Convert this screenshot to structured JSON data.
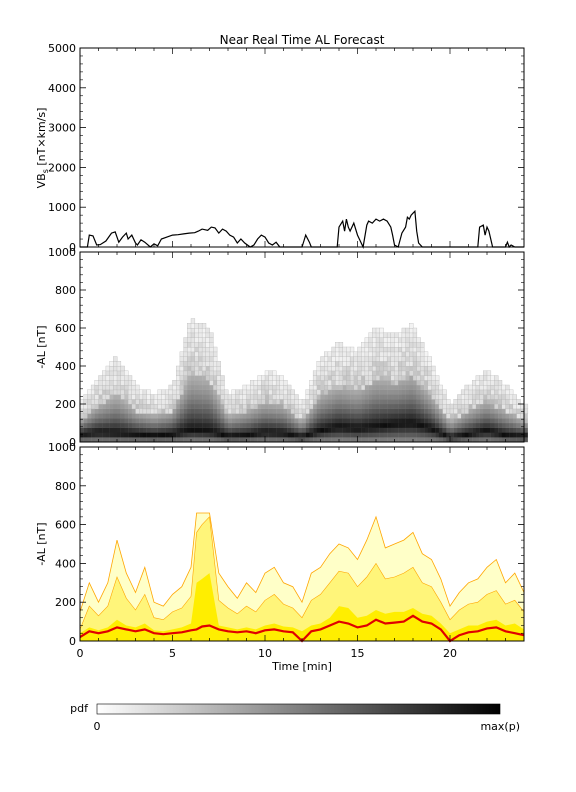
{
  "figure": {
    "title": "Near Real Time AL Forecast",
    "x_ticks": [
      "0",
      "5",
      "10",
      "15",
      "20"
    ],
    "x_label": "Time [min]"
  },
  "colors": {
    "vbs_line": "#000000",
    "al_line": "#e00000",
    "band_outer": "#ffffc8",
    "band_mid": "#fff57a",
    "band_inner": "#ffee00",
    "band_edge": "#ffa500"
  },
  "colorbar": {
    "label": "pdf",
    "min_label": "0",
    "max_label": "max(p)"
  },
  "chart_data": [
    {
      "type": "line",
      "name": "vbs-panel",
      "ylabel": "VB_s [nT×km/s]",
      "ylabel_main": "VB",
      "ylabel_sub": "s",
      "ylabel_rest": " [nT×km/s]",
      "xlim": [
        0,
        24
      ],
      "ylim": [
        0,
        5000
      ],
      "y_ticks": [
        "0",
        "1000",
        "2000",
        "3000",
        "4000",
        "5000"
      ],
      "x": [
        0,
        0.4,
        0.5,
        0.7,
        0.9,
        1.1,
        1.4,
        1.7,
        1.9,
        2.1,
        2.3,
        2.5,
        2.6,
        2.8,
        3.0,
        3.1,
        3.3,
        3.5,
        3.8,
        4.0,
        4.2,
        4.4,
        4.7,
        5.0,
        5.3,
        5.6,
        5.9,
        6.2,
        6.4,
        6.6,
        6.9,
        7.1,
        7.3,
        7.5,
        7.7,
        7.9,
        8.1,
        8.3,
        8.5,
        8.7,
        8.9,
        9.2,
        9.4,
        9.6,
        9.8,
        10.0,
        10.2,
        10.4,
        10.6,
        10.8,
        11.0,
        11.5,
        12.0,
        12.1,
        12.2,
        12.4,
        12.5,
        13.0,
        13.5,
        13.9,
        14.0,
        14.2,
        14.3,
        14.4,
        14.5,
        14.6,
        14.8,
        15.0,
        15.2,
        15.3,
        15.5,
        15.6,
        15.8,
        16.0,
        16.2,
        16.4,
        16.6,
        16.8,
        16.9,
        17.0,
        17.2,
        17.4,
        17.6,
        17.7,
        17.8,
        17.9,
        18.0,
        18.1,
        18.2,
        18.3,
        18.5,
        19.0,
        19.5,
        20.0,
        20.5,
        21.0,
        21.5,
        21.6,
        21.8,
        21.9,
        22.0,
        22.1,
        22.3,
        22.5,
        23.0,
        23.1,
        23.2,
        23.3,
        23.5,
        24.0
      ],
      "y": [
        0,
        0,
        300,
        280,
        50,
        60,
        150,
        350,
        380,
        120,
        250,
        350,
        200,
        300,
        100,
        50,
        180,
        120,
        0,
        80,
        30,
        200,
        250,
        300,
        310,
        330,
        350,
        360,
        400,
        450,
        420,
        500,
        480,
        350,
        450,
        400,
        300,
        250,
        100,
        200,
        100,
        0,
        50,
        200,
        300,
        250,
        100,
        50,
        120,
        0,
        0,
        0,
        0,
        150,
        300,
        120,
        0,
        0,
        0,
        0,
        500,
        650,
        400,
        700,
        500,
        400,
        600,
        300,
        100,
        0,
        550,
        650,
        600,
        700,
        650,
        700,
        650,
        500,
        300,
        50,
        0,
        350,
        500,
        750,
        700,
        800,
        850,
        900,
        400,
        100,
        0,
        0,
        0,
        0,
        0,
        0,
        0,
        500,
        550,
        300,
        500,
        400,
        0,
        0,
        0,
        120,
        0,
        50,
        0,
        0
      ]
    },
    {
      "type": "heatmap",
      "name": "al-pdf-panel",
      "ylabel": "-AL [nT]",
      "xlim": [
        0,
        24
      ],
      "ylim": [
        0,
        1000
      ],
      "y_ticks": [
        "0",
        "200",
        "400",
        "600",
        "800",
        "1000"
      ],
      "x": [
        0,
        1,
        2,
        3,
        4,
        5,
        6,
        7,
        8,
        9,
        10,
        11,
        12,
        13,
        14,
        15,
        16,
        17,
        18,
        19,
        20,
        21,
        22,
        23,
        24
      ],
      "mode": [
        40,
        50,
        45,
        40,
        35,
        40,
        60,
        55,
        30,
        35,
        50,
        45,
        25,
        60,
        80,
        70,
        80,
        95,
        100,
        70,
        20,
        40,
        60,
        35,
        30
      ],
      "high": [
        200,
        350,
        450,
        300,
        250,
        300,
        650,
        600,
        250,
        300,
        380,
        350,
        200,
        450,
        520,
        480,
        600,
        560,
        620,
        420,
        200,
        300,
        380,
        300,
        200
      ]
    },
    {
      "type": "area",
      "name": "al-forecast-panel",
      "ylabel": "-AL [nT]",
      "xlim": [
        0,
        24
      ],
      "ylim": [
        0,
        1000
      ],
      "y_ticks": [
        "0",
        "200",
        "400",
        "600",
        "800",
        "1000"
      ],
      "x": [
        0,
        0.5,
        1,
        1.5,
        2,
        2.5,
        3,
        3.5,
        4,
        4.5,
        5,
        5.5,
        6,
        6.3,
        6.6,
        7,
        7.5,
        8,
        8.5,
        9,
        9.5,
        10,
        10.5,
        11,
        11.5,
        12,
        12.5,
        13,
        13.5,
        14,
        14.5,
        15,
        15.5,
        16,
        16.5,
        17,
        17.5,
        18,
        18.5,
        19,
        19.5,
        20,
        20.5,
        21,
        21.5,
        22,
        22.5,
        23,
        23.5,
        24
      ],
      "upper": [
        150,
        300,
        200,
        300,
        520,
        350,
        250,
        380,
        200,
        180,
        240,
        280,
        380,
        660,
        660,
        660,
        350,
        280,
        220,
        300,
        250,
        350,
        380,
        300,
        280,
        200,
        350,
        380,
        450,
        500,
        480,
        420,
        520,
        640,
        480,
        500,
        520,
        560,
        450,
        420,
        320,
        180,
        250,
        300,
        320,
        380,
        420,
        300,
        350,
        250
      ],
      "band_high": [
        60,
        180,
        130,
        180,
        330,
        220,
        160,
        240,
        120,
        110,
        150,
        170,
        230,
        560,
        600,
        640,
        210,
        170,
        140,
        180,
        150,
        210,
        240,
        190,
        170,
        120,
        210,
        240,
        300,
        360,
        350,
        280,
        330,
        400,
        320,
        330,
        350,
        380,
        300,
        280,
        200,
        110,
        160,
        190,
        200,
        240,
        260,
        190,
        210,
        150
      ],
      "band_low": [
        40,
        70,
        55,
        70,
        110,
        80,
        70,
        90,
        55,
        50,
        60,
        70,
        90,
        300,
        320,
        350,
        80,
        70,
        60,
        70,
        60,
        80,
        90,
        75,
        70,
        50,
        80,
        90,
        120,
        180,
        170,
        120,
        130,
        160,
        140,
        150,
        150,
        170,
        140,
        130,
        90,
        40,
        60,
        80,
        80,
        100,
        110,
        80,
        90,
        60
      ],
      "median": [
        20,
        50,
        40,
        50,
        70,
        60,
        50,
        60,
        40,
        35,
        40,
        45,
        55,
        60,
        75,
        80,
        60,
        50,
        45,
        50,
        40,
        55,
        60,
        50,
        45,
        0,
        50,
        60,
        80,
        100,
        90,
        70,
        80,
        110,
        90,
        95,
        100,
        130,
        100,
        90,
        60,
        0,
        30,
        45,
        50,
        65,
        70,
        50,
        40,
        30
      ]
    }
  ]
}
